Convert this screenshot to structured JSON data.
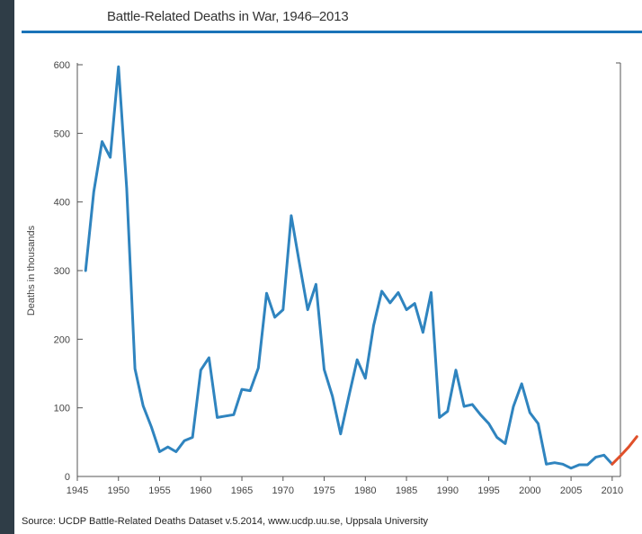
{
  "title": "Battle-Related Deaths in War, 1946–2013",
  "source": "Source: UCDP Battle-Related Deaths Dataset v.5.2014, www.ucdp.uu.se, Uppsala University",
  "colors": {
    "line": "#2f84bf",
    "accent": "#1a73b8",
    "recent": "#e0502a"
  },
  "chart_data": {
    "type": "line",
    "title": "Battle-Related Deaths in War, 1946–2013",
    "xlabel": "",
    "ylabel": "Deaths in thousands",
    "xlim": [
      1945,
      2011
    ],
    "ylim": [
      0,
      600
    ],
    "x_ticks": [
      1945,
      1950,
      1955,
      1960,
      1965,
      1970,
      1975,
      1980,
      1985,
      1990,
      1995,
      2000,
      2005,
      2010
    ],
    "y_ticks": [
      0,
      100,
      200,
      300,
      400,
      500,
      600
    ],
    "grid": false,
    "series": [
      {
        "x": [
          1946,
          1947,
          1948,
          1949,
          1950,
          1951,
          1952,
          1953,
          1954,
          1955,
          1956,
          1957,
          1958,
          1959,
          1960,
          1961,
          1962,
          1963,
          1964,
          1965,
          1966,
          1967,
          1968,
          1969,
          1970,
          1971,
          1972,
          1973,
          1974,
          1975,
          1976,
          1977,
          1978,
          1979,
          1980,
          1981,
          1982,
          1983,
          1984,
          1985,
          1986,
          1987,
          1988,
          1989,
          1990,
          1991,
          1992,
          1993,
          1994,
          1995,
          1996,
          1997,
          1998,
          1999,
          2000,
          2001,
          2002,
          2003,
          2004,
          2005,
          2006,
          2007,
          2008,
          2009,
          2010
        ],
        "y": [
          300,
          415,
          488,
          465,
          597,
          420,
          157,
          103,
          72,
          36,
          43,
          36,
          52,
          57,
          155,
          173,
          86,
          88,
          90,
          127,
          125,
          158,
          267,
          232,
          243,
          380,
          310,
          243,
          280,
          156,
          117,
          62,
          117,
          170,
          143,
          220,
          270,
          253,
          268,
          243,
          252,
          210,
          268,
          86,
          95,
          155,
          102,
          105,
          90,
          77,
          57,
          48,
          102,
          135,
          93,
          77,
          18,
          20,
          18,
          12,
          17,
          17,
          28,
          31,
          18
        ]
      },
      {
        "x": [
          2010,
          2011,
          2012,
          2013
        ],
        "y": [
          18,
          30,
          43,
          58
        ]
      }
    ]
  }
}
